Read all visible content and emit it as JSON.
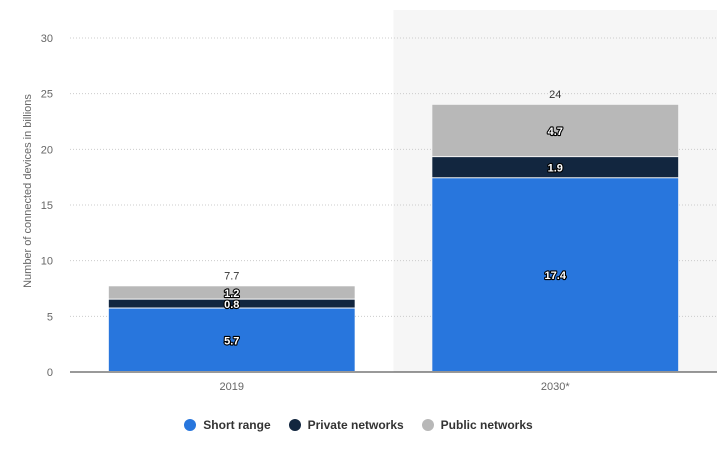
{
  "chart_data": {
    "type": "bar",
    "stacked": true,
    "categories": [
      "2019",
      "2030*"
    ],
    "series": [
      {
        "name": "Short range",
        "values": [
          5.7,
          17.4
        ],
        "color": "#2876dd"
      },
      {
        "name": "Private networks",
        "values": [
          0.8,
          1.9
        ],
        "color": "#12263f"
      },
      {
        "name": "Public networks",
        "values": [
          1.2,
          4.7
        ],
        "color": "#b8b8b8"
      }
    ],
    "totals": [
      7.7,
      24
    ],
    "title": "",
    "xlabel": "",
    "ylabel": "Number of connected devices in billions",
    "ylim": [
      0,
      30
    ],
    "yticks": [
      0,
      5,
      10,
      15,
      20,
      25,
      30
    ],
    "grid": true,
    "legend_position": "bottom-center",
    "highlight_category": "2030*"
  }
}
